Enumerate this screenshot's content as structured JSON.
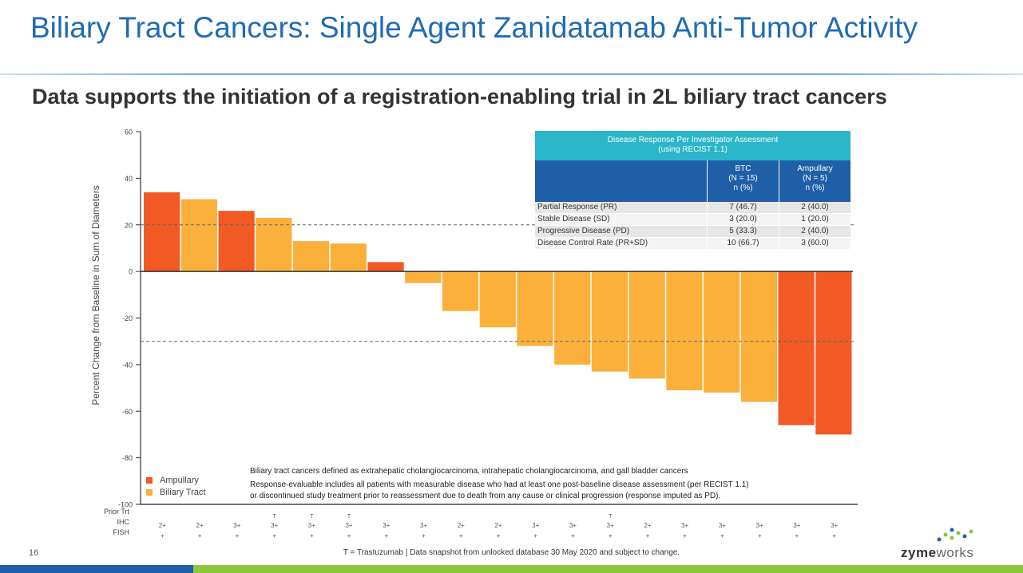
{
  "slide": {
    "title": "Biliary Tract Cancers: Single Agent Zanidatamab Anti-Tumor Activity",
    "subtitle": "Data supports the initiation of a registration-enabling trial in 2L biliary tract cancers",
    "page_number": "16",
    "footer": "T = Trastuzumab | Data snapshot from unlocked database 30 May 2020 and subject to change.",
    "logo_bold": "zyme",
    "logo_light": "works"
  },
  "table": {
    "header": "Disease Response Per Investigator Assessment\n(using RECIST 1.1)",
    "col_btc": "BTC\n(N = 15)\nn (%)",
    "col_amp": "Ampullary\n(N = 5)\nn (%)",
    "rows": [
      {
        "label": "Partial Response (PR)",
        "btc": "7 (46.7)",
        "amp": "2 (40.0)"
      },
      {
        "label": "Stable Disease (SD)",
        "btc": "3 (20.0)",
        "amp": "1 (20.0)"
      },
      {
        "label": "Progressive Disease (PD)",
        "btc": "5 (33.3)",
        "amp": "2 (40.0)"
      },
      {
        "label": "Disease Control Rate (PR+SD)",
        "btc": "10 (66.7)",
        "amp": "3 (60.0)"
      }
    ]
  },
  "notes": {
    "line1": "Biliary tract cancers defined as extrahepatic cholangiocarcinoma, intrahepatic cholangiocarcinoma, and gall bladder cancers",
    "line2": "Response-evaluable includes all patients with measurable disease who had at least one post-baseline disease assessment (per RECIST 1.1)",
    "line3": "or discontinued study treatment prior to reassessment due to death from any cause or clinical progression (response imputed as PD)."
  },
  "row_labels": {
    "prior": "Prior Trt",
    "ihc": "IHC",
    "fish": "FISH"
  },
  "chart_data": {
    "type": "bar",
    "ylabel": "Percent Change from Baseline in Sum of Diameters",
    "ylim": [
      -100,
      60
    ],
    "yticks": [
      60,
      40,
      20,
      0,
      -20,
      -40,
      -60,
      -80,
      -100
    ],
    "reference_lines": [
      20,
      -30
    ],
    "legend": [
      {
        "name": "Ampullary",
        "color": "#f15a24"
      },
      {
        "name": "Biliary Tract",
        "color": "#fbb03b"
      }
    ],
    "bars": [
      {
        "value": 34,
        "type": "Ampullary",
        "prior": "",
        "ihc": "2+",
        "fish": "+"
      },
      {
        "value": 31,
        "type": "Biliary Tract",
        "prior": "",
        "ihc": "2+",
        "fish": "+"
      },
      {
        "value": 26,
        "type": "Ampullary",
        "prior": "",
        "ihc": "3+",
        "fish": "+"
      },
      {
        "value": 23,
        "type": "Biliary Tract",
        "prior": "T",
        "ihc": "3+",
        "fish": "+"
      },
      {
        "value": 13,
        "type": "Biliary Tract",
        "prior": "T",
        "ihc": "3+",
        "fish": "+"
      },
      {
        "value": 12,
        "type": "Biliary Tract",
        "prior": "T",
        "ihc": "3+",
        "fish": "+"
      },
      {
        "value": 4,
        "type": "Ampullary",
        "prior": "",
        "ihc": "3+",
        "fish": "+"
      },
      {
        "value": -5,
        "type": "Biliary Tract",
        "prior": "",
        "ihc": "3+",
        "fish": "+"
      },
      {
        "value": -17,
        "type": "Biliary Tract",
        "prior": "",
        "ihc": "2+",
        "fish": "+"
      },
      {
        "value": -24,
        "type": "Biliary Tract",
        "prior": "",
        "ihc": "2+",
        "fish": "+"
      },
      {
        "value": -32,
        "type": "Biliary Tract",
        "prior": "",
        "ihc": "3+",
        "fish": "+"
      },
      {
        "value": -40,
        "type": "Biliary Tract",
        "prior": "",
        "ihc": "3+",
        "fish": "+"
      },
      {
        "value": -43,
        "type": "Biliary Tract",
        "prior": "T",
        "ihc": "3+",
        "fish": "+"
      },
      {
        "value": -46,
        "type": "Biliary Tract",
        "prior": "",
        "ihc": "2+",
        "fish": "+"
      },
      {
        "value": -51,
        "type": "Biliary Tract",
        "prior": "",
        "ihc": "3+",
        "fish": "+"
      },
      {
        "value": -52,
        "type": "Biliary Tract",
        "prior": "",
        "ihc": "3+",
        "fish": "+"
      },
      {
        "value": -56,
        "type": "Biliary Tract",
        "prior": "",
        "ihc": "3+",
        "fish": "+"
      },
      {
        "value": -66,
        "type": "Ampullary",
        "prior": "",
        "ihc": "3+",
        "fish": "+"
      },
      {
        "value": -70,
        "type": "Ampullary",
        "prior": "",
        "ihc": "3+",
        "fish": "+"
      }
    ]
  }
}
